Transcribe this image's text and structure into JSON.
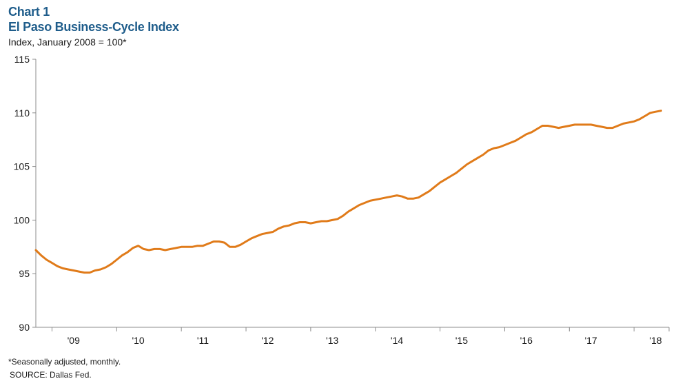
{
  "header": {
    "chart_number": "Chart 1",
    "title": "El Paso Business-Cycle Index",
    "subtitle": "Index, January 2008 = 100*"
  },
  "footer": {
    "note": "*Seasonally adjusted, monthly.",
    "source": "SOURCE: Dallas Fed."
  },
  "colors": {
    "line": "#e07b1a",
    "axis": "#8c8c8c",
    "title": "#1f5d8b"
  },
  "chart_data": {
    "type": "line",
    "title": "El Paso Business-Cycle Index",
    "subtitle": "Index, January 2008 = 100*",
    "xlabel": "",
    "ylabel": "",
    "ylim": [
      90,
      115
    ],
    "yticks": [
      90,
      95,
      100,
      105,
      110,
      115
    ],
    "xlim": [
      "2008-10",
      "2018-04"
    ],
    "xticks": [
      {
        "label": "'09",
        "date": "2009-03"
      },
      {
        "label": "'10",
        "date": "2010-03"
      },
      {
        "label": "'11",
        "date": "2011-03"
      },
      {
        "label": "'12",
        "date": "2012-03"
      },
      {
        "label": "'13",
        "date": "2013-03"
      },
      {
        "label": "'14",
        "date": "2014-03"
      },
      {
        "label": "'15",
        "date": "2015-03"
      },
      {
        "label": "'16",
        "date": "2016-03"
      },
      {
        "label": "'17",
        "date": "2017-03"
      },
      {
        "label": "'18",
        "date": "2018-03"
      }
    ],
    "grid": false,
    "legend": "none",
    "series": [
      {
        "values": [
          [
            "2008-10",
            97.2
          ],
          [
            "2008-11",
            96.7
          ],
          [
            "2008-12",
            96.3
          ],
          [
            "2009-01",
            96.0
          ],
          [
            "2009-02",
            95.7
          ],
          [
            "2009-03",
            95.5
          ],
          [
            "2009-04",
            95.4
          ],
          [
            "2009-05",
            95.3
          ],
          [
            "2009-06",
            95.2
          ],
          [
            "2009-07",
            95.1
          ],
          [
            "2009-08",
            95.1
          ],
          [
            "2009-09",
            95.3
          ],
          [
            "2009-10",
            95.4
          ],
          [
            "2009-11",
            95.6
          ],
          [
            "2009-12",
            95.9
          ],
          [
            "2010-01",
            96.3
          ],
          [
            "2010-02",
            96.7
          ],
          [
            "2010-03",
            97.0
          ],
          [
            "2010-04",
            97.4
          ],
          [
            "2010-05",
            97.6
          ],
          [
            "2010-06",
            97.3
          ],
          [
            "2010-07",
            97.2
          ],
          [
            "2010-08",
            97.3
          ],
          [
            "2010-09",
            97.3
          ],
          [
            "2010-10",
            97.2
          ],
          [
            "2010-11",
            97.3
          ],
          [
            "2010-12",
            97.4
          ],
          [
            "2011-01",
            97.5
          ],
          [
            "2011-02",
            97.5
          ],
          [
            "2011-03",
            97.5
          ],
          [
            "2011-04",
            97.6
          ],
          [
            "2011-05",
            97.6
          ],
          [
            "2011-06",
            97.8
          ],
          [
            "2011-07",
            98.0
          ],
          [
            "2011-08",
            98.0
          ],
          [
            "2011-09",
            97.9
          ],
          [
            "2011-10",
            97.5
          ],
          [
            "2011-11",
            97.5
          ],
          [
            "2011-12",
            97.7
          ],
          [
            "2012-01",
            98.0
          ],
          [
            "2012-02",
            98.3
          ],
          [
            "2012-03",
            98.5
          ],
          [
            "2012-04",
            98.7
          ],
          [
            "2012-05",
            98.8
          ],
          [
            "2012-06",
            98.9
          ],
          [
            "2012-07",
            99.2
          ],
          [
            "2012-08",
            99.4
          ],
          [
            "2012-09",
            99.5
          ],
          [
            "2012-10",
            99.7
          ],
          [
            "2012-11",
            99.8
          ],
          [
            "2012-12",
            99.8
          ],
          [
            "2013-01",
            99.7
          ],
          [
            "2013-02",
            99.8
          ],
          [
            "2013-03",
            99.9
          ],
          [
            "2013-04",
            99.9
          ],
          [
            "2013-05",
            100.0
          ],
          [
            "2013-06",
            100.1
          ],
          [
            "2013-07",
            100.4
          ],
          [
            "2013-08",
            100.8
          ],
          [
            "2013-09",
            101.1
          ],
          [
            "2013-10",
            101.4
          ],
          [
            "2013-11",
            101.6
          ],
          [
            "2013-12",
            101.8
          ],
          [
            "2014-01",
            101.9
          ],
          [
            "2014-02",
            102.0
          ],
          [
            "2014-03",
            102.1
          ],
          [
            "2014-04",
            102.2
          ],
          [
            "2014-05",
            102.3
          ],
          [
            "2014-06",
            102.2
          ],
          [
            "2014-07",
            102.0
          ],
          [
            "2014-08",
            102.0
          ],
          [
            "2014-09",
            102.1
          ],
          [
            "2014-10",
            102.4
          ],
          [
            "2014-11",
            102.7
          ],
          [
            "2014-12",
            103.1
          ],
          [
            "2015-01",
            103.5
          ],
          [
            "2015-02",
            103.8
          ],
          [
            "2015-03",
            104.1
          ],
          [
            "2015-04",
            104.4
          ],
          [
            "2015-05",
            104.8
          ],
          [
            "2015-06",
            105.2
          ],
          [
            "2015-07",
            105.5
          ],
          [
            "2015-08",
            105.8
          ],
          [
            "2015-09",
            106.1
          ],
          [
            "2015-10",
            106.5
          ],
          [
            "2015-11",
            106.7
          ],
          [
            "2015-12",
            106.8
          ],
          [
            "2016-01",
            107.0
          ],
          [
            "2016-02",
            107.2
          ],
          [
            "2016-03",
            107.4
          ],
          [
            "2016-04",
            107.7
          ],
          [
            "2016-05",
            108.0
          ],
          [
            "2016-06",
            108.2
          ],
          [
            "2016-07",
            108.5
          ],
          [
            "2016-08",
            108.8
          ],
          [
            "2016-09",
            108.8
          ],
          [
            "2016-10",
            108.7
          ],
          [
            "2016-11",
            108.6
          ],
          [
            "2016-12",
            108.7
          ],
          [
            "2017-01",
            108.8
          ],
          [
            "2017-02",
            108.9
          ],
          [
            "2017-03",
            108.9
          ],
          [
            "2017-04",
            108.9
          ],
          [
            "2017-05",
            108.9
          ],
          [
            "2017-06",
            108.8
          ],
          [
            "2017-07",
            108.7
          ],
          [
            "2017-08",
            108.6
          ],
          [
            "2017-09",
            108.6
          ],
          [
            "2017-10",
            108.8
          ],
          [
            "2017-11",
            109.0
          ],
          [
            "2017-12",
            109.1
          ],
          [
            "2018-01",
            109.2
          ],
          [
            "2018-02",
            109.4
          ],
          [
            "2018-03",
            109.7
          ],
          [
            "2018-04",
            110.0
          ],
          [
            "2018-05",
            110.1
          ],
          [
            "2018-06",
            110.2
          ]
        ]
      }
    ]
  }
}
